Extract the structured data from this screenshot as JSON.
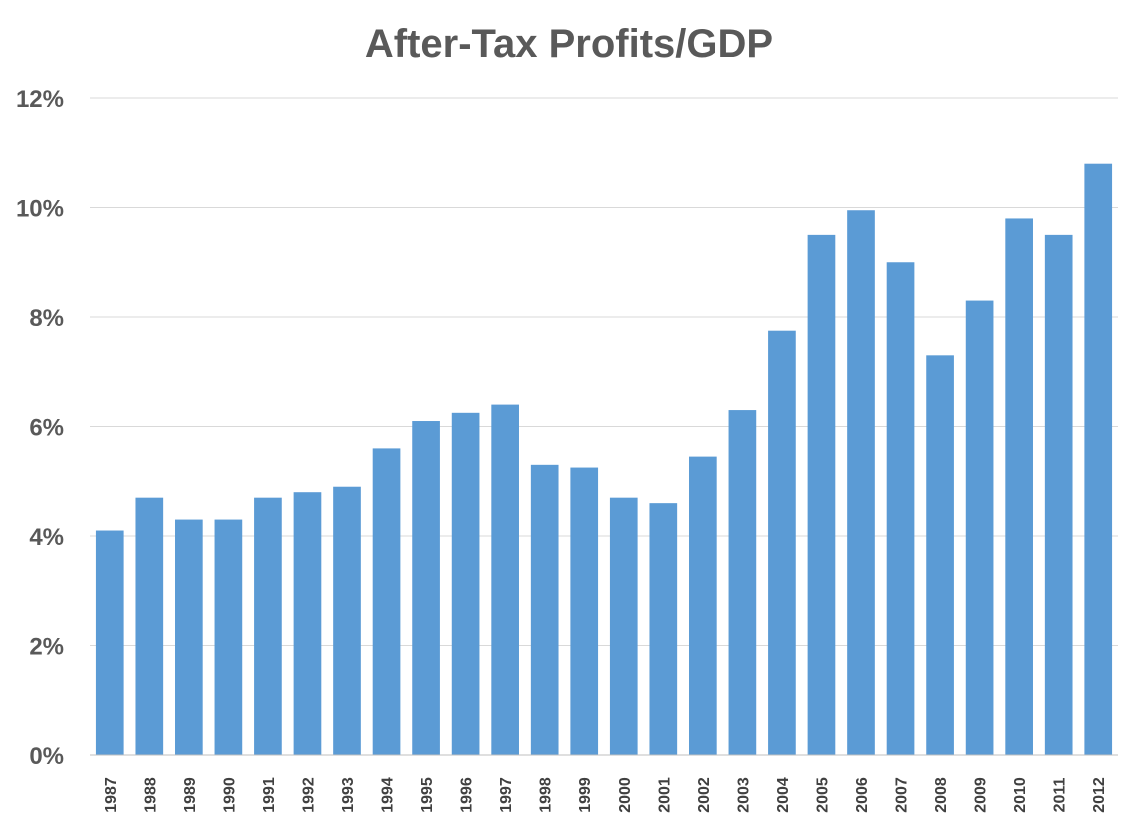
{
  "chart_data": {
    "type": "bar",
    "title": "After-Tax Profits/GDP",
    "xlabel": "",
    "ylabel": "",
    "ylim": [
      0,
      12
    ],
    "yticks": [
      "0%",
      "2%",
      "4%",
      "6%",
      "8%",
      "10%",
      "12%"
    ],
    "grid": true,
    "legend": "none",
    "bar_color": "#5b9bd5",
    "categories": [
      "1987",
      "1988",
      "1989",
      "1990",
      "1991",
      "1992",
      "1993",
      "1994",
      "1995",
      "1996",
      "1997",
      "1998",
      "1999",
      "2000",
      "2001",
      "2002",
      "2003",
      "2004",
      "2005",
      "2006",
      "2007",
      "2008",
      "2009",
      "2010",
      "2011",
      "2012"
    ],
    "values": [
      4.1,
      4.7,
      4.3,
      4.3,
      4.7,
      4.8,
      4.9,
      5.6,
      6.1,
      6.25,
      6.4,
      5.3,
      5.25,
      4.7,
      4.6,
      5.45,
      6.3,
      7.75,
      9.5,
      9.95,
      9.0,
      7.3,
      8.3,
      9.8,
      9.5,
      10.8
    ]
  }
}
